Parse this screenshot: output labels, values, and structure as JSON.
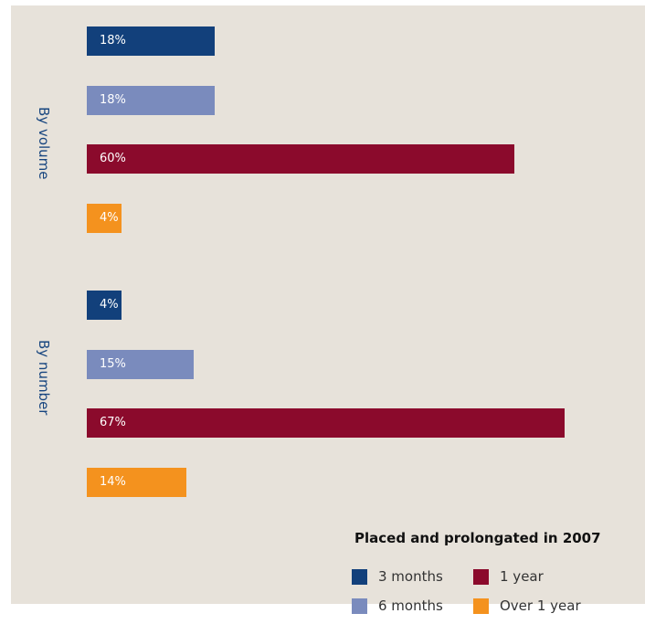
{
  "chart_data": {
    "type": "bar",
    "orientation": "horizontal",
    "title": "Placed and prolongated in 2007",
    "value_unit": "%",
    "groups": [
      "By volume",
      "By number"
    ],
    "series": [
      {
        "name": "3 months",
        "color": "#12407b",
        "values": [
          18,
          4
        ],
        "labels": [
          "18%",
          "4%"
        ]
      },
      {
        "name": "6 months",
        "color": "#7a8bbd",
        "values": [
          18,
          15
        ],
        "labels": [
          "18%",
          "15%"
        ]
      },
      {
        "name": "1 year",
        "color": "#8b0a2c",
        "values": [
          60,
          67
        ],
        "labels": [
          "60%",
          "67%"
        ]
      },
      {
        "name": "Over 1 year",
        "color": "#f4921e",
        "values": [
          4,
          14
        ],
        "labels": [
          "4%",
          "14%"
        ]
      }
    ],
    "legend_position": "bottom-right",
    "grid": false
  }
}
